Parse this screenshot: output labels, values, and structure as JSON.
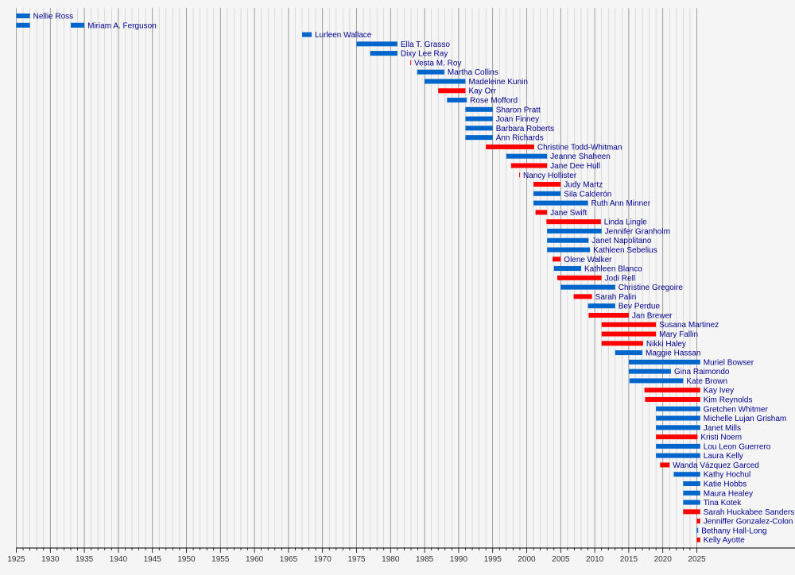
{
  "chart_data": {
    "type": "bar",
    "title": "",
    "xlabel": "",
    "ylabel": "",
    "xlim": [
      1925,
      2025
    ],
    "xticks": [
      1925,
      1930,
      1935,
      1940,
      1945,
      1950,
      1955,
      1960,
      1965,
      1970,
      1975,
      1980,
      1985,
      1990,
      1995,
      2000,
      2005,
      2010,
      2015,
      2020,
      2025
    ],
    "grid": true,
    "legend": "none",
    "colors": {
      "democratic": "#0066cc",
      "republican": "#ff0000",
      "gridline": "#aaaaaa"
    },
    "bars": [
      {
        "name": "Nellie Ross",
        "start": 1925.0,
        "end": 1927.0,
        "party": "democratic"
      },
      {
        "name": "Miriam A. Ferguson",
        "start": 1925.0,
        "end": 1927.0,
        "party": "democratic"
      },
      {
        "name": "Miriam A. Ferguson",
        "start": 1933.0,
        "end": 1935.0,
        "party": "democratic"
      },
      {
        "name": "Lurleen Wallace",
        "start": 1967.0,
        "end": 1968.4,
        "party": "democratic"
      },
      {
        "name": "Ella T. Grasso",
        "start": 1975.0,
        "end": 1981.0,
        "party": "democratic"
      },
      {
        "name": "Dixy Lee Ray",
        "start": 1977.0,
        "end": 1981.0,
        "party": "democratic"
      },
      {
        "name": "Vesta M. Roy",
        "start": 1982.9,
        "end": 1983.0,
        "party": "republican"
      },
      {
        "name": "Martha Collins",
        "start": 1983.9,
        "end": 1987.9,
        "party": "democratic"
      },
      {
        "name": "Madeleine Kunin",
        "start": 1985.0,
        "end": 1991.0,
        "party": "democratic"
      },
      {
        "name": "Kay Orr",
        "start": 1987.0,
        "end": 1991.0,
        "party": "republican"
      },
      {
        "name": "Rose Mofford",
        "start": 1988.3,
        "end": 1991.2,
        "party": "democratic"
      },
      {
        "name": "Sharon Pratt",
        "start": 1991.0,
        "end": 1995.0,
        "party": "democratic"
      },
      {
        "name": "Joan Finney",
        "start": 1991.0,
        "end": 1995.0,
        "party": "democratic"
      },
      {
        "name": "Barbara Roberts",
        "start": 1991.0,
        "end": 1995.0,
        "party": "democratic"
      },
      {
        "name": "Ann Richards",
        "start": 1991.0,
        "end": 1995.0,
        "party": "democratic"
      },
      {
        "name": "Christine Todd-Whitman",
        "start": 1994.0,
        "end": 2001.1,
        "party": "republican"
      },
      {
        "name": "Jeanne Shaheen",
        "start": 1997.0,
        "end": 2003.0,
        "party": "democratic"
      },
      {
        "name": "Jane Dee Hull",
        "start": 1997.7,
        "end": 2003.0,
        "party": "republican"
      },
      {
        "name": "Nancy Hollister",
        "start": 1998.9,
        "end": 1999.0,
        "party": "republican"
      },
      {
        "name": "Judy Martz",
        "start": 2001.0,
        "end": 2005.0,
        "party": "republican"
      },
      {
        "name": "Sila Calderón",
        "start": 2001.0,
        "end": 2005.0,
        "party": "democratic"
      },
      {
        "name": "Ruth Ann Minner",
        "start": 2001.0,
        "end": 2009.0,
        "party": "democratic"
      },
      {
        "name": "Jane Swift",
        "start": 2001.3,
        "end": 2003.0,
        "party": "republican"
      },
      {
        "name": "Linda Lingle",
        "start": 2002.9,
        "end": 2010.9,
        "party": "republican"
      },
      {
        "name": "Jennifer Granholm",
        "start": 2003.0,
        "end": 2011.0,
        "party": "democratic"
      },
      {
        "name": "Janet Napolitano",
        "start": 2003.0,
        "end": 2009.1,
        "party": "democratic"
      },
      {
        "name": "Kathleen Sebelius",
        "start": 2003.0,
        "end": 2009.3,
        "party": "democratic"
      },
      {
        "name": "Olene Walker",
        "start": 2003.8,
        "end": 2005.0,
        "party": "republican"
      },
      {
        "name": "Kathleen Blanco",
        "start": 2004.0,
        "end": 2008.0,
        "party": "democratic"
      },
      {
        "name": "Jodi Rell",
        "start": 2004.5,
        "end": 2011.0,
        "party": "republican"
      },
      {
        "name": "Christine Gregoire",
        "start": 2005.0,
        "end": 2013.0,
        "party": "democratic"
      },
      {
        "name": "Sarah Palin",
        "start": 2006.9,
        "end": 2009.6,
        "party": "republican"
      },
      {
        "name": "Bev Perdue",
        "start": 2009.0,
        "end": 2013.0,
        "party": "democratic"
      },
      {
        "name": "Jan Brewer",
        "start": 2009.1,
        "end": 2015.0,
        "party": "republican"
      },
      {
        "name": "Susana Martinez",
        "start": 2011.0,
        "end": 2019.0,
        "party": "republican"
      },
      {
        "name": "Mary Fallin",
        "start": 2011.0,
        "end": 2019.0,
        "party": "republican"
      },
      {
        "name": "Nikki Haley",
        "start": 2011.0,
        "end": 2017.1,
        "party": "republican"
      },
      {
        "name": "Maggie Hassan",
        "start": 2013.0,
        "end": 2017.0,
        "party": "democratic"
      },
      {
        "name": "Muriel Bowser",
        "start": 2015.0,
        "end": 2025.5,
        "party": "democratic"
      },
      {
        "name": "Gina Raimondo",
        "start": 2015.0,
        "end": 2021.2,
        "party": "democratic"
      },
      {
        "name": "Kate Brown",
        "start": 2015.1,
        "end": 2023.0,
        "party": "democratic"
      },
      {
        "name": "Kay Ivey",
        "start": 2017.3,
        "end": 2025.5,
        "party": "republican"
      },
      {
        "name": "Kim Reynolds",
        "start": 2017.4,
        "end": 2025.5,
        "party": "republican"
      },
      {
        "name": "Gretchen Whitmer",
        "start": 2019.0,
        "end": 2025.5,
        "party": "democratic"
      },
      {
        "name": "Michelle Lujan Grisham",
        "start": 2019.0,
        "end": 2025.5,
        "party": "democratic"
      },
      {
        "name": "Janet Mills",
        "start": 2019.0,
        "end": 2025.5,
        "party": "democratic"
      },
      {
        "name": "Kristi Noem",
        "start": 2019.0,
        "end": 2025.1,
        "party": "republican"
      },
      {
        "name": "Lou Leon Guerrero",
        "start": 2019.0,
        "end": 2025.5,
        "party": "democratic"
      },
      {
        "name": "Laura Kelly",
        "start": 2019.0,
        "end": 2025.5,
        "party": "democratic"
      },
      {
        "name": "Wanda Vázquez Garced",
        "start": 2019.6,
        "end": 2021.0,
        "party": "republican"
      },
      {
        "name": "Kathy Hochul",
        "start": 2021.6,
        "end": 2025.5,
        "party": "democratic"
      },
      {
        "name": "Katie Hobbs",
        "start": 2023.0,
        "end": 2025.5,
        "party": "democratic"
      },
      {
        "name": "Maura Healey",
        "start": 2023.0,
        "end": 2025.5,
        "party": "democratic"
      },
      {
        "name": "Tina Kotek",
        "start": 2023.0,
        "end": 2025.5,
        "party": "democratic"
      },
      {
        "name": "Sarah Huckabee Sanders",
        "start": 2023.0,
        "end": 2025.5,
        "party": "republican"
      },
      {
        "name": "Jenniffer Gonzalez-Colon",
        "start": 2025.0,
        "end": 2025.5,
        "party": "republican"
      },
      {
        "name": "Bethany Hall-Long",
        "start": 2025.0,
        "end": 2025.2,
        "party": "democratic"
      },
      {
        "name": "Kelly Ayotte",
        "start": 2025.0,
        "end": 2025.5,
        "party": "republican"
      }
    ]
  }
}
